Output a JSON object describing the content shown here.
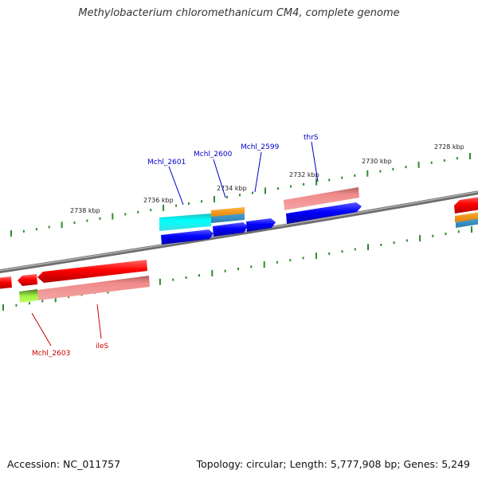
{
  "title": "Methylobacterium chloromethanicum CM4, complete genome",
  "footer": {
    "accession": "Accession: NC_011757",
    "stats": "Topology: circular; Length: 5,777,908 bp; Genes: 5,249"
  },
  "ticks": [
    "2728 kbp",
    "2730 kbp",
    "2732 kbp",
    "2734 kbp",
    "2736 kbp",
    "2738 kbp"
  ],
  "genes": {
    "forward": [
      "thrS",
      "Mchl_2599",
      "Mchl_2600",
      "Mchl_2601"
    ],
    "reverse": [
      "Mchl_2603",
      "ileS"
    ]
  },
  "colors": {
    "forward_label": "#0000cc",
    "reverse_label": "#cc0000",
    "forward_cds": "#0000ff",
    "reverse_cds": "#ff0000",
    "tick": "#2e8b2e",
    "backbone": "#808080"
  }
}
